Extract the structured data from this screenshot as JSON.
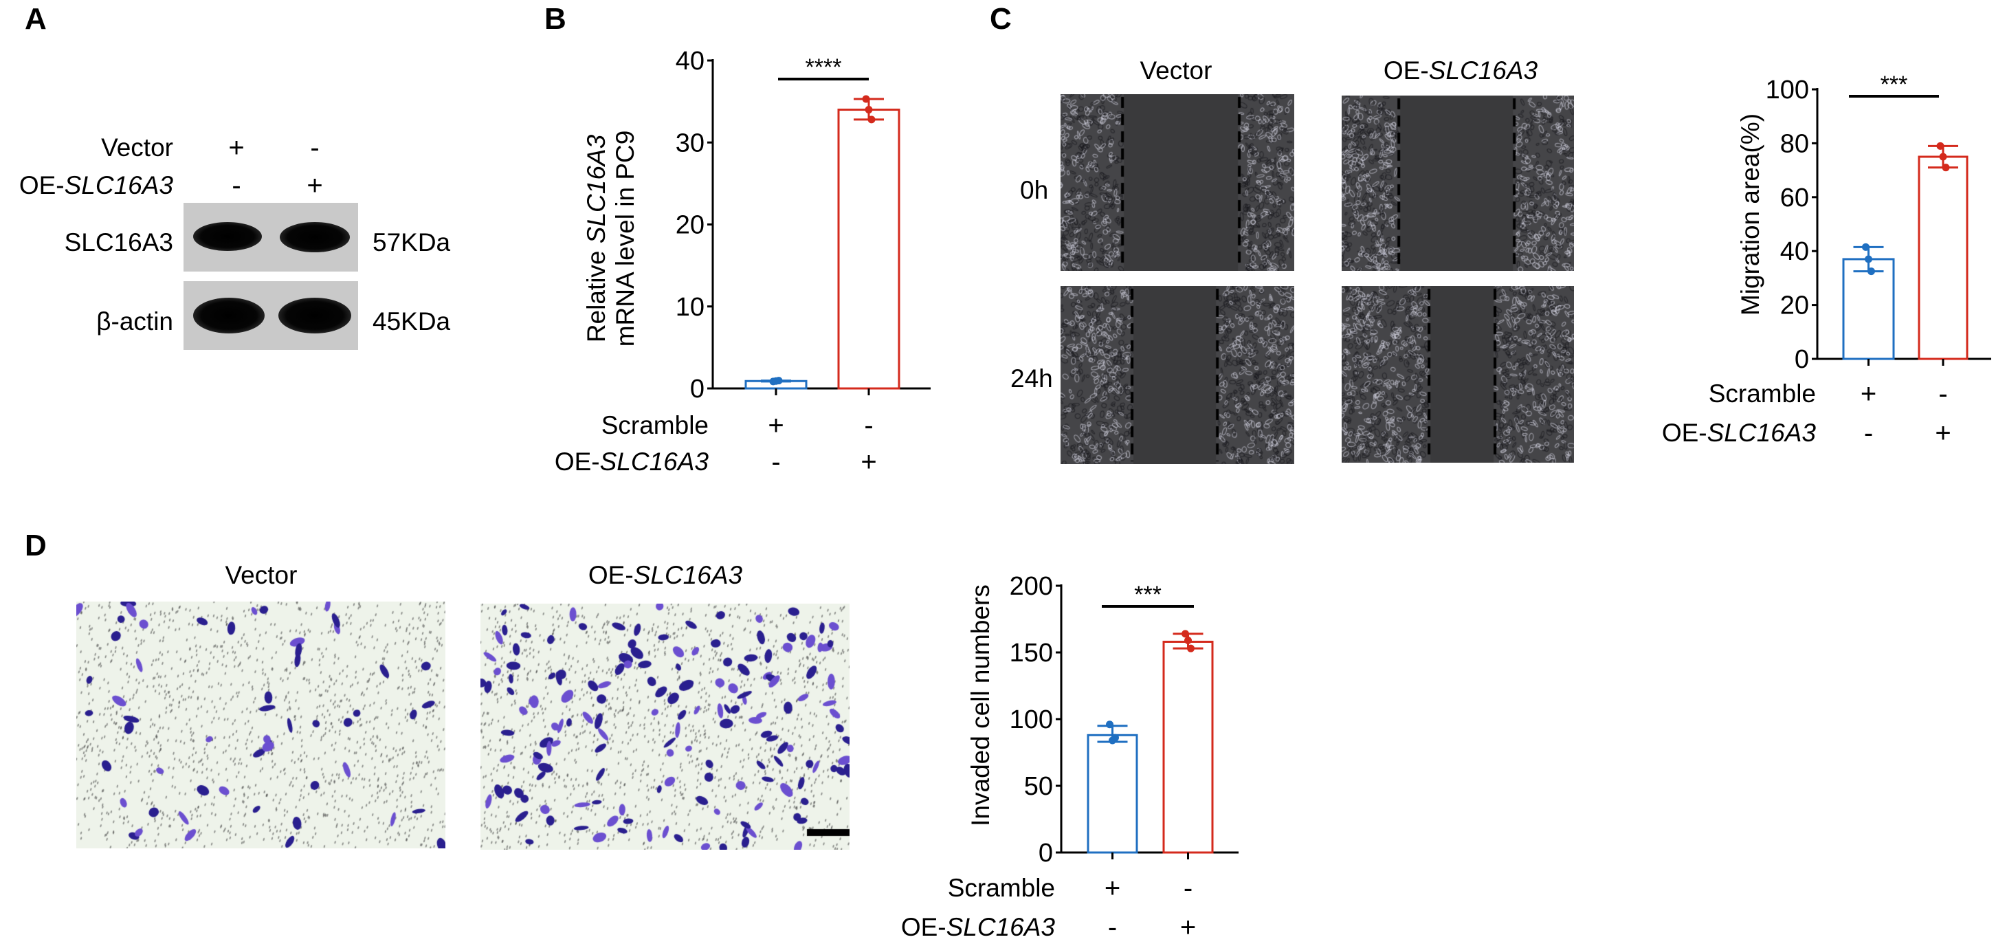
{
  "panels": {
    "A": {
      "letter": "A",
      "rows": [
        {
          "label": "Vector",
          "marks": [
            "+",
            "-"
          ]
        },
        {
          "label_prefix": "OE-",
          "label_gene": "SLC16A3",
          "marks": [
            "-",
            "+"
          ]
        }
      ],
      "blots": [
        {
          "protein": "SLC16A3",
          "size": "57KDa"
        },
        {
          "protein": "β-actin",
          "size": "45KDa"
        }
      ]
    },
    "B": {
      "letter": "B"
    },
    "C": {
      "letter": "C",
      "columns": [
        {
          "label": "Vector"
        },
        {
          "label_prefix": "OE-",
          "label_gene": "SLC16A3"
        }
      ],
      "rows": [
        "0h",
        "24h"
      ]
    },
    "D": {
      "letter": "D",
      "columns": [
        {
          "label": "Vector"
        },
        {
          "label_prefix": "OE-",
          "label_gene": "SLC16A3"
        }
      ]
    }
  },
  "colors": {
    "scramble": "#1f6fc1",
    "oe": "#d42a1c"
  },
  "chart_data": [
    {
      "id": "B",
      "type": "bar",
      "ylabel_line1_prefix": "Relative ",
      "ylabel_line1_gene": "SLC16A3",
      "ylabel_line2": "mRNA level in PC9",
      "ylim": [
        0,
        40
      ],
      "yticks": [
        "0",
        "10",
        "20",
        "30",
        "40"
      ],
      "significance": "****",
      "conditions": [
        {
          "label": "Scramble",
          "marks": [
            "+",
            "-"
          ]
        },
        {
          "label_prefix": "OE-",
          "label_gene": "SLC16A3",
          "marks": [
            "-",
            "+"
          ]
        }
      ],
      "series": [
        {
          "name": "Scramble",
          "mean": 0.9,
          "error": [
            0.85,
            0.95
          ],
          "points": [
            0.85,
            0.9,
            0.95
          ]
        },
        {
          "name": "OE-SLC16A3",
          "mean": 34.0,
          "error": [
            32.8,
            35.3
          ],
          "points": [
            35.3,
            34.0,
            32.8
          ]
        }
      ]
    },
    {
      "id": "C",
      "type": "bar",
      "ylabel": "Migration area(%)",
      "ylim": [
        0,
        100
      ],
      "yticks": [
        "0",
        "20",
        "40",
        "60",
        "80",
        "100"
      ],
      "significance": "***",
      "conditions": [
        {
          "label": "Scramble",
          "marks": [
            "+",
            "-"
          ]
        },
        {
          "label_prefix": "OE-",
          "label_gene": "SLC16A3",
          "marks": [
            "-",
            "+"
          ]
        }
      ],
      "series": [
        {
          "name": "Scramble",
          "mean": 37,
          "error": [
            32.5,
            41.5
          ],
          "points": [
            41.5,
            37,
            32.5
          ]
        },
        {
          "name": "OE-SLC16A3",
          "mean": 75,
          "error": [
            71,
            79
          ],
          "points": [
            79,
            75,
            71
          ]
        }
      ]
    },
    {
      "id": "D",
      "type": "bar",
      "ylabel": "Invaded cell numbers",
      "ylim": [
        0,
        200
      ],
      "yticks": [
        "0",
        "50",
        "100",
        "150",
        "200"
      ],
      "significance": "***",
      "conditions": [
        {
          "label": "Scramble",
          "marks": [
            "+",
            "-"
          ]
        },
        {
          "label_prefix": "OE-",
          "label_gene": "SLC16A3",
          "marks": [
            "-",
            "+"
          ]
        }
      ],
      "series": [
        {
          "name": "Scramble",
          "mean": 88,
          "error": [
            83,
            95
          ],
          "points": [
            96,
            84,
            86
          ]
        },
        {
          "name": "OE-SLC16A3",
          "mean": 158,
          "error": [
            153,
            164
          ],
          "points": [
            164,
            159,
            153
          ]
        }
      ]
    }
  ]
}
